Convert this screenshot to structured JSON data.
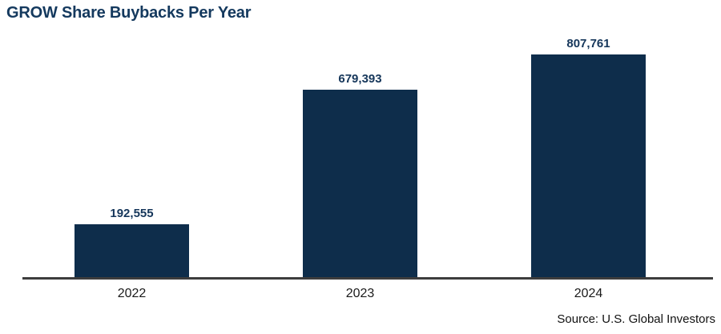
{
  "title": "GROW Share Buybacks Per Year",
  "source": "Source: U.S. Global Investors",
  "chart_data": {
    "type": "bar",
    "title": "GROW Share Buybacks Per Year",
    "categories": [
      "2022",
      "2023",
      "2024"
    ],
    "values": [
      192555,
      679393,
      807761
    ],
    "value_labels": [
      "192,555",
      "679,393",
      "807,761"
    ],
    "xlabel": "",
    "ylabel": "",
    "ylim": [
      0,
      807761
    ],
    "grid": false,
    "legend": false,
    "bar_color": "#0e2d4b",
    "value_label_color": "#15365a",
    "axis_color": "#3d3d3d",
    "source": "Source: U.S. Global Investors"
  }
}
